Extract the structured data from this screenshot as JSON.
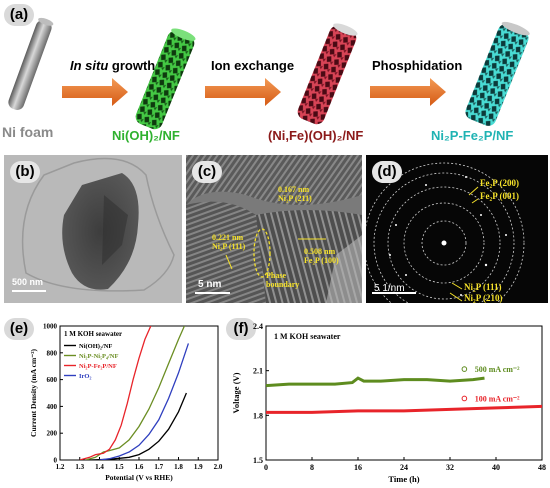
{
  "panel_a": {
    "letter": "(a)",
    "step1_prefix": "In situ",
    "step1_suffix": " growth",
    "step2": "Ion exchange",
    "step3": "Phosphidation",
    "foam_label": "Ni foam",
    "product1": "Ni(OH)₂/NF",
    "product2": "(Ni,Fe)(OH)₂/NF",
    "product3": "Ni₂P-Fe₂P/NF",
    "colors": {
      "arrow": "#e8742a",
      "green": "#3fbf3f",
      "red": "#d23b4f",
      "cyan": "#3fd6cf",
      "foam": "#8a8a8a",
      "label_green": "#2fb12f",
      "label_red": "#8b1a1a",
      "label_cyan": "#1fb3b3"
    }
  },
  "panel_b": {
    "letter": "(b)",
    "scale": "500 nm"
  },
  "panel_c": {
    "letter": "(c)",
    "scale": "5 nm",
    "ann1_d": "0.167 nm",
    "ann1_p": "Ni₂P (211)",
    "ann2_d": "0.221 nm",
    "ann2_p": "Ni₂P (111)",
    "ann3_d": "0.508 nm",
    "ann3_p": "Fe₂P (100)",
    "phase1": "Phase",
    "phase2": "boundary"
  },
  "panel_d": {
    "letter": "(d)",
    "scale": "5 1/nm",
    "r1": "Fe₂P (200)",
    "r2": "Fe₂P (001)",
    "r3": "Ni₂P  (111)",
    "r4": "Ni₂P  (210)"
  },
  "panel_e": {
    "letter": "(e)",
    "annotation": "1 M KOH seawater",
    "xlabel": "Potential (V vs RHE)",
    "ylabel": "Current Density (mA cm⁻²)",
    "legend": [
      "Ni(OH)₂/NF",
      "Ni₂P-Ni₅P₄/NF",
      "Ni₂P-Fe₂P/NF",
      "IrO₂"
    ]
  },
  "panel_f": {
    "letter": "(f)",
    "annotation": "1 M KOH seawater",
    "xlabel": "Time (h)",
    "ylabel": "Voltage (V)",
    "legend": [
      "500 mA cm⁻²",
      "100 mA cm⁻²"
    ]
  },
  "chart_data": [
    {
      "type": "line",
      "xlabel": "Potential (V vs RHE)",
      "ylabel": "Current Density (mA cm⁻²)",
      "xlim": [
        1.2,
        2.0
      ],
      "ylim": [
        0,
        1000
      ],
      "xticks": [
        "1.2",
        "1.3",
        "1.4",
        "1.5",
        "1.6",
        "1.7",
        "1.8",
        "1.9",
        "2.0"
      ],
      "yticks": [
        "0",
        "200",
        "400",
        "600",
        "800",
        "1000"
      ],
      "legend_position": "top-left",
      "series": [
        {
          "name": "Ni(OH)₂/NF",
          "color": "#000000",
          "x": [
            1.35,
            1.45,
            1.55,
            1.6,
            1.65,
            1.7,
            1.75,
            1.8,
            1.84
          ],
          "y": [
            0,
            5,
            20,
            40,
            80,
            140,
            230,
            360,
            500
          ]
        },
        {
          "name": "Ni₂P-Ni₅P₄/NF",
          "color": "#6b8e23",
          "x": [
            1.33,
            1.38,
            1.42,
            1.45,
            1.5,
            1.55,
            1.6,
            1.65,
            1.7,
            1.75,
            1.8,
            1.83
          ],
          "y": [
            0,
            20,
            60,
            70,
            90,
            150,
            250,
            380,
            540,
            720,
            900,
            1000
          ]
        },
        {
          "name": "Ni₂P-Fe₂P/NF",
          "color": "#e8242a",
          "x": [
            1.3,
            1.35,
            1.38,
            1.42,
            1.45,
            1.48,
            1.51,
            1.54,
            1.57,
            1.6,
            1.63,
            1.66
          ],
          "y": [
            0,
            20,
            40,
            50,
            80,
            150,
            260,
            420,
            600,
            760,
            900,
            1000
          ]
        },
        {
          "name": "IrO₂",
          "color": "#2f3fbf",
          "x": [
            1.4,
            1.45,
            1.5,
            1.55,
            1.6,
            1.65,
            1.7,
            1.75,
            1.8,
            1.85
          ],
          "y": [
            0,
            10,
            30,
            60,
            110,
            190,
            300,
            460,
            650,
            870
          ]
        }
      ]
    },
    {
      "type": "line",
      "xlabel": "Time (h)",
      "ylabel": "Voltage (V)",
      "xlim": [
        0,
        48
      ],
      "ylim": [
        1.5,
        2.4
      ],
      "xticks": [
        "0",
        "8",
        "16",
        "24",
        "32",
        "40",
        "48"
      ],
      "yticks": [
        "1.5",
        "1.8",
        "2.1",
        "2.4"
      ],
      "legend_position": "right",
      "series": [
        {
          "name": "500 mA cm⁻²",
          "color": "#5e8c1f",
          "marker": "open-circle",
          "x": [
            0,
            4,
            8,
            12,
            15,
            16,
            17,
            20,
            24,
            28,
            32,
            36,
            38
          ],
          "y": [
            2.0,
            2.01,
            2.01,
            2.01,
            2.02,
            2.05,
            2.03,
            2.03,
            2.04,
            2.04,
            2.03,
            2.04,
            2.05
          ]
        },
        {
          "name": "100 mA cm⁻²",
          "color": "#e8242a",
          "marker": "open-circle",
          "x": [
            0,
            8,
            16,
            24,
            32,
            40,
            48
          ],
          "y": [
            1.82,
            1.82,
            1.83,
            1.83,
            1.84,
            1.85,
            1.86
          ]
        }
      ]
    }
  ]
}
